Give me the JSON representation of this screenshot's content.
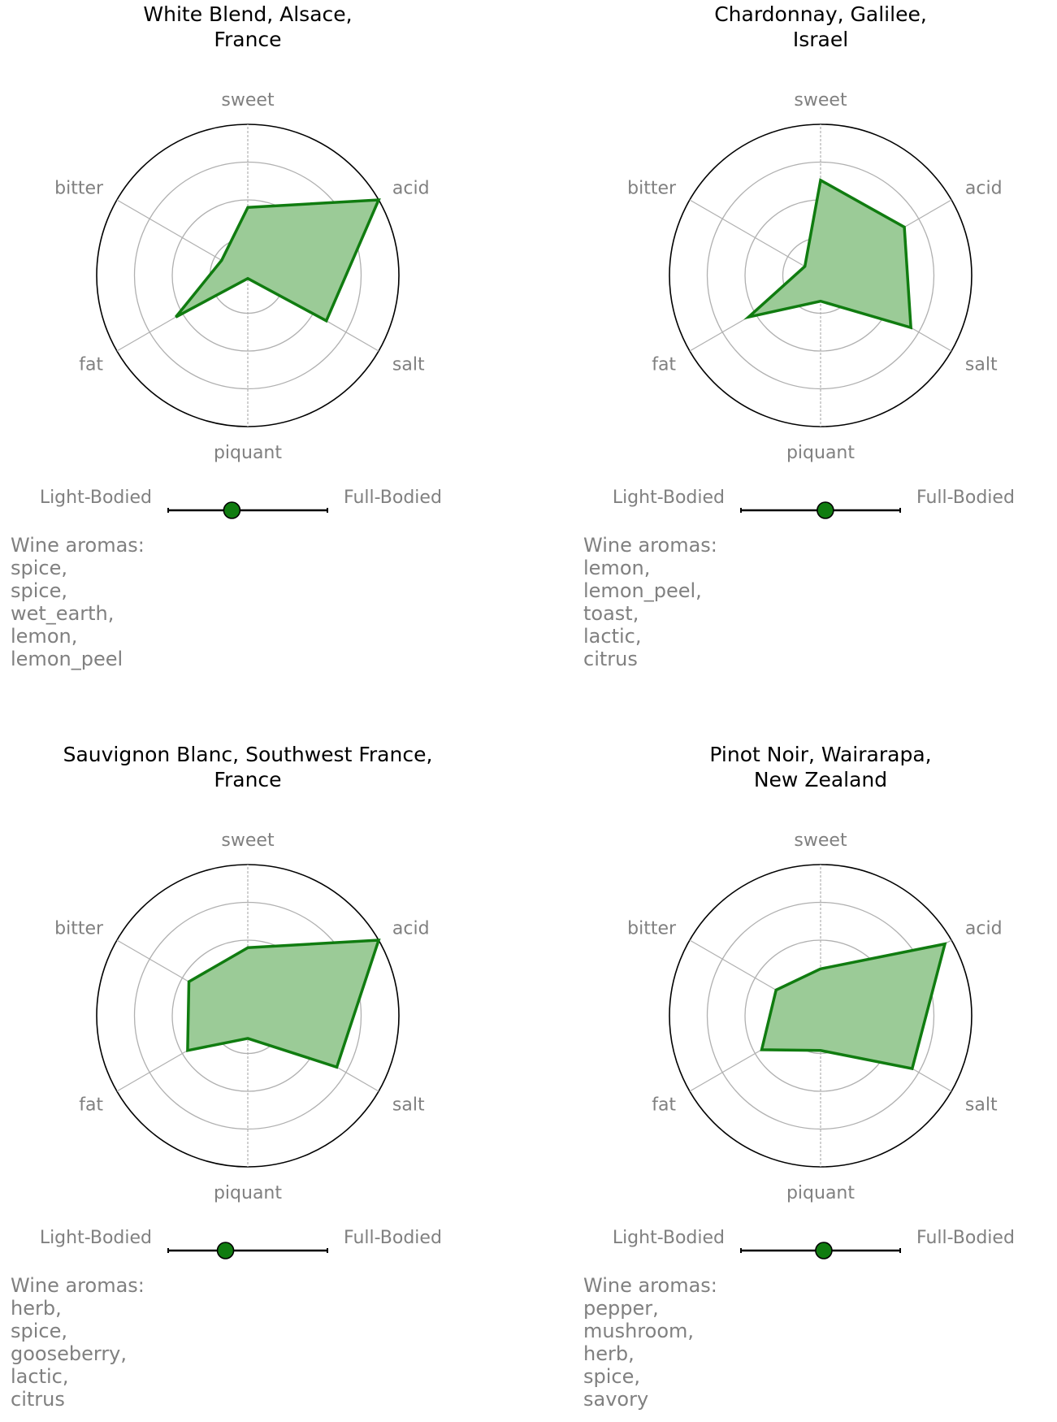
{
  "chart_data": [
    {
      "type": "radar",
      "title": "White Blend, Alsace,\nFrance",
      "axes": [
        "sweet",
        "acid",
        "salt",
        "piquant",
        "fat",
        "bitter"
      ],
      "values": [
        0.45,
        1.0,
        0.6,
        0.02,
        0.55,
        0.2
      ],
      "rmax": 1.0,
      "rings": [
        0.25,
        0.5,
        0.75,
        1.0
      ],
      "body": {
        "left_label": "Light-Bodied",
        "right_label": "Full-Bodied",
        "value": 0.4
      },
      "aromas_title": "Wine aromas:",
      "aromas": [
        "spice,",
        "spice,",
        "wet_earth,",
        "lemon,",
        "lemon_peel"
      ]
    },
    {
      "type": "radar",
      "title": "Chardonnay, Galilee,\nIsrael",
      "axes": [
        "sweet",
        "acid",
        "salt",
        "piquant",
        "fat",
        "bitter"
      ],
      "values": [
        0.63,
        0.64,
        0.69,
        0.17,
        0.55,
        0.12
      ],
      "rmax": 1.0,
      "rings": [
        0.25,
        0.5,
        0.75,
        1.0
      ],
      "body": {
        "left_label": "Light-Bodied",
        "right_label": "Full-Bodied",
        "value": 0.53
      },
      "aromas_title": "Wine aromas:",
      "aromas": [
        "lemon,",
        "lemon_peel,",
        "toast,",
        "lactic,",
        "citrus"
      ]
    },
    {
      "type": "radar",
      "title": "Sauvignon Blanc, Southwest France,\nFrance",
      "axes": [
        "sweet",
        "acid",
        "salt",
        "piquant",
        "fat",
        "bitter"
      ],
      "values": [
        0.45,
        1.0,
        0.68,
        0.15,
        0.46,
        0.45
      ],
      "rmax": 1.0,
      "rings": [
        0.25,
        0.5,
        0.75,
        1.0
      ],
      "body": {
        "left_label": "Light-Bodied",
        "right_label": "Full-Bodied",
        "value": 0.36
      },
      "aromas_title": "Wine aromas:",
      "aromas": [
        "herb,",
        "spice,",
        "gooseberry,",
        "lactic,",
        "citrus"
      ]
    },
    {
      "type": "radar",
      "title": "Pinot Noir, Wairarapa,\nNew Zealand",
      "axes": [
        "sweet",
        "acid",
        "salt",
        "piquant",
        "fat",
        "bitter"
      ],
      "values": [
        0.31,
        0.95,
        0.7,
        0.23,
        0.45,
        0.34
      ],
      "rmax": 1.0,
      "rings": [
        0.25,
        0.5,
        0.75,
        1.0
      ],
      "body": {
        "left_label": "Light-Bodied",
        "right_label": "Full-Bodied",
        "value": 0.52
      },
      "aromas_title": "Wine aromas:",
      "aromas": [
        "pepper,",
        "mushroom,",
        "herb,",
        "spice,",
        "savory"
      ]
    }
  ],
  "colors": {
    "series_line": "#107c10",
    "series_fill": "#9bcb97",
    "label_gray": "#808080",
    "grid_gray": "#b0b0b0",
    "title": "#000000",
    "marker_fill": "#107c10"
  }
}
